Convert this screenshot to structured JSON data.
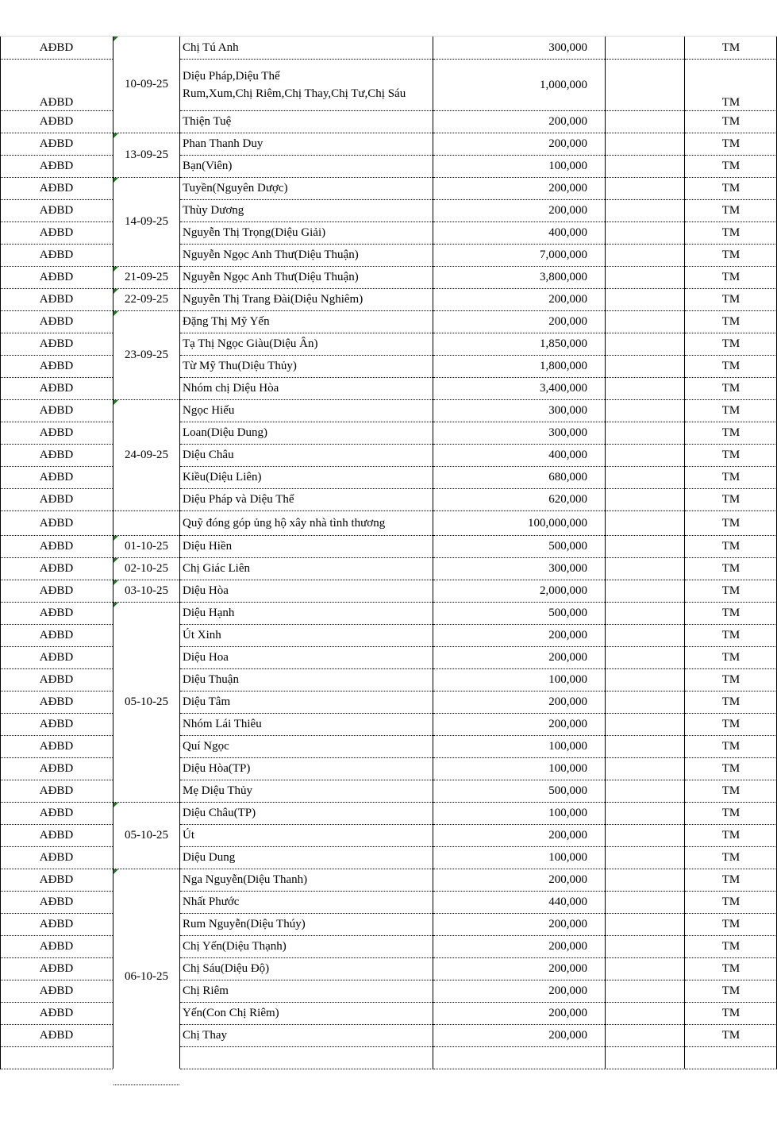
{
  "colors": {
    "grid": "#000000",
    "error_indicator": "#1f7a1f"
  },
  "groups": [
    {
      "date": "10-09-25",
      "rows": [
        {
          "code": "AĐBD",
          "name": "Chị Tú Anh",
          "amount": "300,000",
          "pay": "TM"
        },
        {
          "code": "AĐBD",
          "name": "Diệu Pháp,Diệu Thể",
          "name2": "Rum,Xum,Chị Riêm,Chị Thay,Chị Tư,Chị Sáu",
          "amount": "1,000,000",
          "pay": "TM"
        },
        {
          "code": "AĐBD",
          "name": "Thiện Tuệ",
          "amount": "200,000",
          "pay": "TM"
        }
      ]
    },
    {
      "date": "13-09-25",
      "rows": [
        {
          "code": "AĐBD",
          "name": "Phan Thanh Duy",
          "amount": "200,000",
          "pay": "TM"
        },
        {
          "code": "AĐBD",
          "name": "Bạn(Viên)",
          "amount": "100,000",
          "pay": "TM"
        }
      ]
    },
    {
      "date": "14-09-25",
      "rows": [
        {
          "code": "AĐBD",
          "name": "Tuyền(Nguyên Dược)",
          "amount": "200,000",
          "pay": "TM"
        },
        {
          "code": "AĐBD",
          "name": "Thùy Dương",
          "amount": "200,000",
          "pay": "TM"
        },
        {
          "code": "AĐBD",
          "name": "Nguyễn Thị Trọng(Diệu Giải)",
          "amount": "400,000",
          "pay": "TM"
        },
        {
          "code": "AĐBD",
          "name": "Nguyễn Ngọc Anh Thư(Diệu Thuận)",
          "amount": "7,000,000",
          "pay": "TM"
        }
      ]
    },
    {
      "date": "21-09-25",
      "rows": [
        {
          "code": "AĐBD",
          "name": "Nguyễn Ngọc Anh Thư(Diệu Thuận)",
          "amount": "3,800,000",
          "pay": "TM"
        }
      ]
    },
    {
      "date": "22-09-25",
      "rows": [
        {
          "code": "AĐBD",
          "name": "Nguyễn Thị Trang Đài(Diệu Nghiêm)",
          "amount": "200,000",
          "pay": "TM"
        }
      ]
    },
    {
      "date": "23-09-25",
      "rows": [
        {
          "code": "AĐBD",
          "name": "Đặng Thị Mỹ Yến",
          "amount": "200,000",
          "pay": "TM"
        },
        {
          "code": "AĐBD",
          "name": "Tạ Thị Ngọc Giàu(Diệu Ân)",
          "amount": "1,850,000",
          "pay": "TM"
        },
        {
          "code": "AĐBD",
          "name": "Từ Mỹ Thu(Diệu Thủy)",
          "amount": "1,800,000",
          "pay": "TM"
        },
        {
          "code": "AĐBD",
          "name": "Nhóm chị Diệu Hòa",
          "amount": "3,400,000",
          "pay": "TM"
        }
      ]
    },
    {
      "date": "24-09-25",
      "rows": [
        {
          "code": "AĐBD",
          "name": "Ngọc Hiếu",
          "amount": "300,000",
          "pay": "TM"
        },
        {
          "code": "AĐBD",
          "name": "Loan(Diệu Dung)",
          "amount": "300,000",
          "pay": "TM"
        },
        {
          "code": "AĐBD",
          "name": "Diệu Châu",
          "amount": "400,000",
          "pay": "TM"
        },
        {
          "code": "AĐBD",
          "name": "Kiều(Diệu Liên)",
          "amount": "680,000",
          "pay": "TM"
        },
        {
          "code": "AĐBD",
          "name": "Diệu Pháp và Diệu Thể",
          "amount": "620,000",
          "pay": "TM"
        }
      ]
    },
    {
      "date": "",
      "rows": [
        {
          "code": "AĐBD",
          "name": "Quỹ đóng góp ủng hộ xây nhà tình thương",
          "amount": "100,000,000",
          "pay": "TM"
        }
      ]
    },
    {
      "date": "01-10-25",
      "rows": [
        {
          "code": "AĐBD",
          "name": "Diệu Hiền",
          "amount": "500,000",
          "pay": "TM"
        }
      ]
    },
    {
      "date": "02-10-25",
      "rows": [
        {
          "code": "AĐBD",
          "name": "Chị Giác Liên",
          "amount": "300,000",
          "pay": "TM"
        }
      ]
    },
    {
      "date": "03-10-25",
      "rows": [
        {
          "code": "AĐBD",
          "name": "Diệu Hòa",
          "amount": "2,000,000",
          "pay": "TM"
        }
      ]
    },
    {
      "date": "05-10-25",
      "rows": [
        {
          "code": "AĐBD",
          "name": "Diệu Hạnh",
          "amount": "500,000",
          "pay": "TM"
        },
        {
          "code": "AĐBD",
          "name": "Út Xinh",
          "amount": "200,000",
          "pay": "TM"
        },
        {
          "code": "AĐBD",
          "name": "Diệu Hoa",
          "amount": "200,000",
          "pay": "TM"
        },
        {
          "code": "AĐBD",
          "name": "Diệu Thuận",
          "amount": "100,000",
          "pay": "TM"
        },
        {
          "code": "AĐBD",
          "name": "Diệu Tâm",
          "amount": "200,000",
          "pay": "TM"
        },
        {
          "code": "AĐBD",
          "name": "Nhóm Lái Thiêu",
          "amount": "200,000",
          "pay": "TM"
        },
        {
          "code": "AĐBD",
          "name": "Quí Ngọc",
          "amount": "100,000",
          "pay": "TM"
        },
        {
          "code": "AĐBD",
          "name": "Diệu Hòa(TP)",
          "amount": "100,000",
          "pay": "TM"
        },
        {
          "code": "AĐBD",
          "name": "Mẹ Diệu Thủy",
          "amount": "500,000",
          "pay": "TM"
        }
      ]
    },
    {
      "date": "05-10-25",
      "rows": [
        {
          "code": "AĐBD",
          "name": "Diệu Châu(TP)",
          "amount": "100,000",
          "pay": "TM"
        },
        {
          "code": "AĐBD",
          "name": "Út",
          "amount": "200,000",
          "pay": "TM"
        },
        {
          "code": "AĐBD",
          "name": "Diệu Dung",
          "amount": "100,000",
          "pay": "TM"
        }
      ]
    },
    {
      "date": "06-10-25",
      "rows": [
        {
          "code": "AĐBD",
          "name": "Nga Nguyễn(Diệu Thanh)",
          "amount": "200,000",
          "pay": "TM"
        },
        {
          "code": "AĐBD",
          "name": "Nhất Phước",
          "amount": "440,000",
          "pay": "TM"
        },
        {
          "code": "AĐBD",
          "name": "Rum Nguyễn(Diệu Thúy)",
          "amount": "200,000",
          "pay": "TM"
        },
        {
          "code": "AĐBD",
          "name": "Chị Yến(Diệu Thạnh)",
          "amount": "200,000",
          "pay": "TM"
        },
        {
          "code": "AĐBD",
          "name": "Chị Sáu(Diệu Độ)",
          "amount": "200,000",
          "pay": "TM"
        },
        {
          "code": "AĐBD",
          "name": "Chị Riêm",
          "amount": "200,000",
          "pay": "TM"
        },
        {
          "code": "AĐBD",
          "name": "Yến(Con Chị Riêm)",
          "amount": "200,000",
          "pay": "TM"
        },
        {
          "code": "AĐBD",
          "name": "Chị Thay",
          "amount": "200,000",
          "pay": "TM"
        }
      ]
    }
  ]
}
